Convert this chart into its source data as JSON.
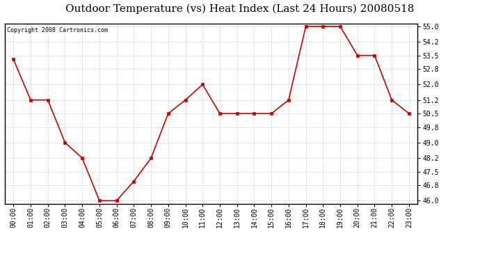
{
  "title": "Outdoor Temperature (vs) Heat Index (Last 24 Hours) 20080518",
  "copyright": "Copyright 2008 Cartronics.com",
  "x_labels": [
    "00:00",
    "01:00",
    "02:00",
    "03:00",
    "04:00",
    "05:00",
    "06:00",
    "07:00",
    "08:00",
    "09:00",
    "10:00",
    "11:00",
    "12:00",
    "13:00",
    "14:00",
    "15:00",
    "16:00",
    "17:00",
    "18:00",
    "19:00",
    "20:00",
    "21:00",
    "22:00",
    "23:00"
  ],
  "y_values": [
    53.3,
    51.2,
    51.2,
    49.0,
    48.2,
    46.0,
    46.0,
    47.0,
    48.2,
    50.5,
    51.2,
    52.0,
    50.5,
    50.5,
    50.5,
    50.5,
    51.2,
    55.0,
    55.0,
    55.0,
    53.5,
    53.5,
    51.2,
    50.5
  ],
  "line_color": "#cc0000",
  "marker": "s",
  "marker_size": 3,
  "marker_color": "#cc0000",
  "bg_color": "#ffffff",
  "plot_bg_color": "#ffffff",
  "grid_color": "#cccccc",
  "y_min": 46.0,
  "y_max": 55.0,
  "y_ticks": [
    46.0,
    46.8,
    47.5,
    48.2,
    49.0,
    49.8,
    50.5,
    51.2,
    52.0,
    52.8,
    53.5,
    54.2,
    55.0
  ],
  "title_fontsize": 11,
  "copyright_fontsize": 6,
  "tick_fontsize": 7,
  "border_color": "#000000"
}
